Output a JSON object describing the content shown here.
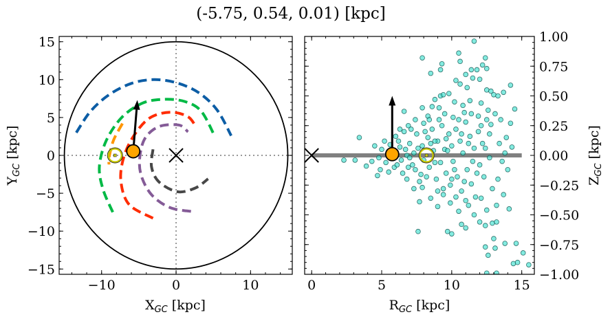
{
  "title": "(-5.75, 0.54, 0.01) [kpc]",
  "chart_data": [
    {
      "type": "line",
      "panel": "left",
      "xlabel": {
        "main": "X",
        "sub": "GC",
        "unit": " [kpc]"
      },
      "ylabel": {
        "main": "Y",
        "sub": "GC",
        "unit": " [kpc]"
      },
      "xlim": [
        -15.7,
        15.6
      ],
      "ylim": [
        -15.7,
        15.7
      ],
      "xticks": [
        -10,
        0,
        10
      ],
      "yticks": [
        -15,
        -10,
        -5,
        0,
        5,
        10,
        15
      ],
      "xtick_labels": [
        "−10",
        "0",
        "10"
      ],
      "ytick_labels": [
        "−15",
        "−10",
        "−5",
        "0",
        "5",
        "10",
        "15"
      ],
      "x_minor_step": 2,
      "y_minor_step": 1,
      "guide_lines": "dotted lines at x=0 and y=0",
      "boundary_circle_radius": 15,
      "series": [
        {
          "color": "#0C5DA5",
          "style": "dashed",
          "points": [
            [
              -13.4,
              3
            ],
            [
              -11.5,
              5.8
            ],
            [
              -9,
              8
            ],
            [
              -6,
              9.5
            ],
            [
              -3,
              10
            ],
            [
              0,
              9.6
            ],
            [
              3,
              8.3
            ],
            [
              5.5,
              6
            ],
            [
              7.4,
              2.6
            ]
          ]
        },
        {
          "color": "#00B945",
          "style": "dashed",
          "points": [
            [
              -8.5,
              -7.5
            ],
            [
              -9.8,
              -4.5
            ],
            [
              -10.3,
              -1.5
            ],
            [
              -9.4,
              1.9
            ],
            [
              -7.3,
              5
            ],
            [
              -4.5,
              6.9
            ],
            [
              -1.6,
              7.4
            ],
            [
              1.2,
              7.1
            ],
            [
              3.4,
              5.8
            ],
            [
              5.2,
              2.5
            ]
          ]
        },
        {
          "color": "#FF9500",
          "style": "dashed",
          "points": [
            [
              -7.2,
              4.2
            ],
            [
              -8.4,
              2
            ],
            [
              -9,
              -0.3
            ],
            [
              -9,
              -1.2
            ]
          ]
        },
        {
          "color": "#FF2C00",
          "style": "dashed",
          "points": [
            [
              -3.1,
              -8.3
            ],
            [
              -6.3,
              -6.5
            ],
            [
              -7.4,
              -3.5
            ],
            [
              -7.1,
              -0.5
            ],
            [
              -5.8,
              2.4
            ],
            [
              -3.6,
              4.9
            ],
            [
              -0.8,
              5.7
            ],
            [
              1.6,
              5.1
            ],
            [
              2.7,
              3.7
            ]
          ]
        },
        {
          "color": "#845B97",
          "style": "dashed",
          "points": [
            [
              2,
              -7.4
            ],
            [
              -0.8,
              -6.9
            ],
            [
              -3.2,
              -5.3
            ],
            [
              -4.6,
              -2.9
            ],
            [
              -4.9,
              -0.5
            ],
            [
              -4.2,
              2.2
            ],
            [
              -2.3,
              3.8
            ],
            [
              0.4,
              4
            ],
            [
              1.6,
              3.1
            ]
          ]
        },
        {
          "color": "#474747",
          "style": "dashed",
          "points": [
            [
              -3.1,
              0.8
            ],
            [
              -3.3,
              -1.5
            ],
            [
              -2.3,
              -3.5
            ],
            [
              0.2,
              -4.8
            ],
            [
              2.6,
              -4.3
            ],
            [
              4.3,
              -3.1
            ]
          ]
        }
      ],
      "markers": {
        "current_position": {
          "x": -5.75,
          "y": 0.54,
          "color": "#FFA500"
        },
        "velocity_arrow_tip": {
          "x": -5.2,
          "y": 7.3
        },
        "sun_symbol": {
          "x": -8.2,
          "y": 0.0,
          "color": "#C8C800"
        },
        "galactic_center": {
          "x": 0,
          "y": 0,
          "symbol": "x"
        }
      }
    },
    {
      "type": "scatter",
      "panel": "right",
      "xlabel": {
        "main": "R",
        "sub": "GC",
        "unit": " [kpc]"
      },
      "ylabel": {
        "main": "Z",
        "sub": "GC",
        "unit": " [kpc]"
      },
      "xlim": [
        -0.5,
        15.9
      ],
      "ylim": [
        -1.0,
        1.0
      ],
      "xticks": [
        0,
        5,
        10,
        15
      ],
      "yticks": [
        1.0,
        0.75,
        0.5,
        0.25,
        0.0,
        -0.25,
        -0.5,
        -0.75,
        -1.0
      ],
      "xtick_labels": [
        "0",
        "5",
        "10",
        "15"
      ],
      "ytick_labels": [
        "1.00",
        "0.75",
        "0.50",
        "0.25",
        "0.00",
        "−0.25",
        "−0.50",
        "−0.75",
        "−1.00"
      ],
      "x_minor_step": 1,
      "y_minor_step": 0.05,
      "yaxis_side": "right",
      "disk_line": {
        "x": [
          0,
          15
        ],
        "z": 0,
        "color": "#808080"
      },
      "point_color": "#40E0D0",
      "point_edge": "#0B4F4A",
      "markers": {
        "current_position": {
          "x": 5.75,
          "y": 0.01,
          "color": "#FFA500"
        },
        "velocity_arrow_tip": {
          "x": 5.75,
          "y": 0.5
        },
        "sun_symbol": {
          "x": 8.2,
          "y": 0.0,
          "color": "#C8C800"
        },
        "galactic_center": {
          "x": 0,
          "y": 0,
          "symbol": "x"
        }
      },
      "points": [
        [
          11.6,
          0.96
        ],
        [
          10.5,
          0.86
        ],
        [
          7.9,
          0.82
        ],
        [
          12.4,
          0.82
        ],
        [
          10.6,
          0.79
        ],
        [
          9.3,
          0.77
        ],
        [
          9.2,
          0.72
        ],
        [
          8.5,
          0.69
        ],
        [
          12.2,
          0.76
        ],
        [
          12.5,
          0.73
        ],
        [
          11.4,
          0.72
        ],
        [
          11.8,
          0.72
        ],
        [
          11.0,
          0.68
        ],
        [
          11.5,
          0.65
        ],
        [
          12.0,
          0.64
        ],
        [
          10.3,
          0.63
        ],
        [
          10.6,
          0.6
        ],
        [
          14.2,
          0.59
        ],
        [
          11.1,
          0.57
        ],
        [
          9.8,
          0.52
        ],
        [
          9.2,
          0.5
        ],
        [
          9.4,
          0.51
        ],
        [
          12.5,
          0.55
        ],
        [
          12.8,
          0.54
        ],
        [
          13.0,
          0.51
        ],
        [
          13.3,
          0.5
        ],
        [
          13.7,
          0.53
        ],
        [
          8.8,
          0.47
        ],
        [
          7.9,
          0.4
        ],
        [
          8.6,
          0.41
        ],
        [
          9.1,
          0.4
        ],
        [
          6.6,
          0.37
        ],
        [
          14.5,
          0.39
        ],
        [
          14.2,
          0.27
        ],
        [
          14.3,
          0.07
        ],
        [
          13.8,
          0.02
        ],
        [
          3.4,
          0.15
        ],
        [
          2.3,
          -0.04
        ],
        [
          3.1,
          -0.04
        ],
        [
          3.9,
          -0.09
        ],
        [
          4.7,
          -0.17
        ],
        [
          7.6,
          -0.64
        ],
        [
          9.7,
          -0.64
        ],
        [
          10.0,
          -0.66
        ],
        [
          13.0,
          -0.7
        ],
        [
          12.4,
          -0.77
        ],
        [
          13.1,
          -0.78
        ],
        [
          13.8,
          -0.74
        ],
        [
          14.6,
          -0.74
        ],
        [
          15.1,
          -0.82
        ],
        [
          12.6,
          -0.84
        ],
        [
          14.4,
          -0.91
        ],
        [
          14.7,
          -0.9
        ],
        [
          15.5,
          -0.92
        ],
        [
          12.5,
          -0.99
        ],
        [
          13.2,
          -0.99
        ],
        [
          10.7,
          -0.58
        ],
        [
          11.0,
          -0.61
        ],
        [
          12.0,
          -0.56
        ],
        [
          12.4,
          -0.59
        ],
        [
          12.9,
          -0.57
        ],
        [
          13.2,
          -0.56
        ],
        [
          9.0,
          -0.43
        ],
        [
          7.7,
          -0.39
        ],
        [
          10.2,
          0.45
        ],
        [
          10.8,
          0.42
        ],
        [
          11.3,
          0.46
        ],
        [
          12.1,
          0.44
        ],
        [
          12.6,
          0.38
        ],
        [
          13.1,
          0.35
        ],
        [
          13.5,
          0.3
        ],
        [
          12.8,
          0.26
        ],
        [
          11.9,
          0.33
        ],
        [
          10.9,
          0.36
        ],
        [
          10.1,
          0.32
        ],
        [
          9.5,
          0.35
        ],
        [
          8.3,
          0.33
        ],
        [
          7.4,
          0.3
        ],
        [
          6.9,
          0.25
        ],
        [
          8.0,
          0.27
        ],
        [
          13.9,
          0.15
        ],
        [
          13.4,
          0.1
        ],
        [
          12.7,
          0.18
        ],
        [
          13.6,
          -0.05
        ],
        [
          14.0,
          -0.12
        ],
        [
          13.3,
          -0.2
        ],
        [
          12.9,
          -0.28
        ],
        [
          13.7,
          -0.33
        ],
        [
          14.1,
          -0.45
        ],
        [
          13.2,
          -0.42
        ],
        [
          12.5,
          -0.46
        ],
        [
          11.6,
          -0.5
        ],
        [
          11.2,
          -0.42
        ],
        [
          10.5,
          -0.47
        ],
        [
          9.9,
          -0.4
        ],
        [
          9.4,
          -0.33
        ],
        [
          8.5,
          -0.36
        ],
        [
          7.3,
          -0.28
        ],
        [
          6.8,
          -0.2
        ],
        [
          12.1,
          -0.36
        ],
        [
          5.0,
          0.05
        ],
        [
          5.3,
          -0.06
        ],
        [
          5.6,
          0.09
        ],
        [
          4.8,
          -0.02
        ],
        [
          5.9,
          -0.1
        ],
        [
          6.2,
          0.12
        ],
        [
          6.4,
          -0.04
        ],
        [
          6.7,
          0.05
        ],
        [
          6.0,
          0.16
        ],
        [
          6.5,
          -0.15
        ],
        [
          7.0,
          0.1
        ],
        [
          7.2,
          -0.08
        ],
        [
          7.5,
          0.18
        ],
        [
          7.3,
          0.02
        ],
        [
          7.8,
          -0.16
        ],
        [
          7.9,
          0.08
        ],
        [
          8.0,
          -0.04
        ],
        [
          8.3,
          0.15
        ],
        [
          8.4,
          -0.1
        ],
        [
          8.6,
          0.22
        ],
        [
          8.7,
          0.04
        ],
        [
          8.9,
          -0.2
        ],
        [
          9.0,
          0.12
        ],
        [
          9.2,
          -0.06
        ],
        [
          9.3,
          0.25
        ],
        [
          9.5,
          0.05
        ],
        [
          9.6,
          -0.15
        ],
        [
          9.8,
          0.18
        ],
        [
          9.9,
          -0.25
        ],
        [
          10.0,
          0.08
        ],
        [
          10.1,
          -0.05
        ],
        [
          10.3,
          0.22
        ],
        [
          10.4,
          -0.18
        ],
        [
          10.6,
          0.12
        ],
        [
          10.7,
          -0.3
        ],
        [
          10.8,
          0.02
        ],
        [
          11.0,
          0.28
        ],
        [
          11.1,
          -0.12
        ],
        [
          11.3,
          0.16
        ],
        [
          11.4,
          -0.24
        ],
        [
          11.6,
          0.06
        ],
        [
          11.7,
          -0.35
        ],
        [
          11.9,
          0.2
        ],
        [
          12.0,
          -0.08
        ],
        [
          12.2,
          0.1
        ],
        [
          12.3,
          -0.18
        ],
        [
          12.5,
          0.3
        ],
        [
          12.7,
          -0.02
        ],
        [
          5.5,
          -0.14
        ],
        [
          5.8,
          0.03
        ],
        [
          6.1,
          -0.08
        ],
        [
          6.3,
          0.07
        ],
        [
          6.6,
          0.2
        ],
        [
          6.9,
          -0.1
        ],
        [
          7.1,
          0.22
        ],
        [
          7.4,
          -0.12
        ],
        [
          7.6,
          0.06
        ],
        [
          7.7,
          -0.22
        ],
        [
          8.1,
          0.2
        ],
        [
          8.2,
          -0.18
        ],
        [
          8.5,
          0.1
        ],
        [
          8.8,
          -0.06
        ],
        [
          9.1,
          0.3
        ],
        [
          9.4,
          -0.28
        ],
        [
          9.7,
          0.04
        ],
        [
          10.2,
          -0.12
        ],
        [
          10.5,
          0.3
        ],
        [
          10.9,
          -0.22
        ],
        [
          11.2,
          0.1
        ],
        [
          11.5,
          -0.05
        ],
        [
          11.8,
          -0.15
        ],
        [
          12.1,
          0.25
        ],
        [
          12.4,
          0.06
        ],
        [
          5.2,
          0.12
        ],
        [
          4.5,
          0.08
        ],
        [
          4.3,
          -0.05
        ],
        [
          4.9,
          -0.12
        ],
        [
          6.8,
          0.0
        ],
        [
          7.0,
          -0.02
        ],
        [
          8.8,
          0.12
        ],
        [
          9.6,
          0.14
        ],
        [
          10.0,
          -0.2
        ],
        [
          10.7,
          0.18
        ],
        [
          11.4,
          0.35
        ],
        [
          8.4,
          0.3
        ],
        [
          9.0,
          -0.3
        ],
        [
          7.9,
          -0.27
        ],
        [
          10.3,
          -0.35
        ],
        [
          11.0,
          -0.38
        ],
        [
          6.3,
          0.22
        ]
      ]
    }
  ]
}
